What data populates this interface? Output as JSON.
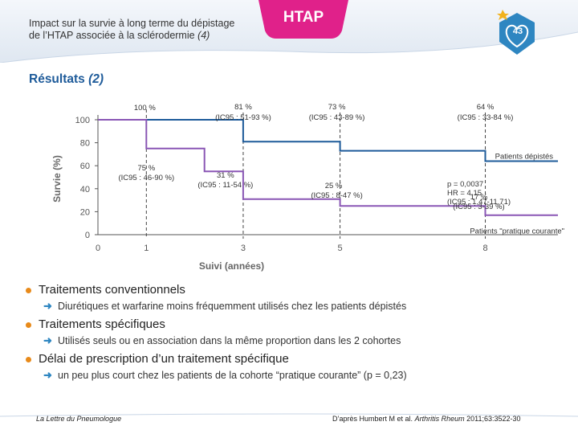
{
  "header": {
    "title_line1": "Impact sur la survie à long terme du dépistage",
    "title_line2": "de l’HTAP associée à la sclérodermie",
    "title_ref": "(4)",
    "badge": "HTAP",
    "slide_number": "43",
    "colors": {
      "badge": "#e0218a",
      "header_bg": "#e8eef5",
      "accent": "#2e86c1"
    }
  },
  "section": {
    "title": "Résultats",
    "title_ref": "(2)"
  },
  "chart_data": {
    "type": "line",
    "xlabel": "Suivi (années)",
    "ylabel": "Survie (%)",
    "xlim": [
      0,
      9.5
    ],
    "ylim": [
      0,
      100
    ],
    "xticks": [
      "0",
      "1",
      "3",
      "5",
      "8"
    ],
    "yticks": [
      "0",
      "20",
      "40",
      "60",
      "80",
      "100"
    ],
    "series": [
      {
        "name": "Patients dépistés",
        "color": "#1e5b9a",
        "points": [
          [
            0,
            100
          ],
          [
            1,
            100
          ],
          [
            1,
            100
          ],
          [
            3,
            100
          ],
          [
            3,
            81
          ],
          [
            5,
            81
          ],
          [
            5,
            73
          ],
          [
            8,
            73
          ],
          [
            8,
            64
          ],
          [
            9.5,
            64
          ]
        ]
      },
      {
        "name": "Patients \"pratique courante\"",
        "color": "#8a57b5",
        "points": [
          [
            0,
            100
          ],
          [
            1,
            100
          ],
          [
            1,
            75
          ],
          [
            2.2,
            75
          ],
          [
            2.2,
            55
          ],
          [
            3,
            55
          ],
          [
            3,
            31
          ],
          [
            5,
            31
          ],
          [
            5,
            25
          ],
          [
            8,
            25
          ],
          [
            8,
            17
          ],
          [
            9.5,
            17
          ]
        ]
      }
    ],
    "annotations": {
      "a100": "100 %",
      "a81_val": "81 %",
      "a81_ci": "(IC95 : 51-93 %)",
      "a73_val": "73 %",
      "a73_ci": "(IC95 : 43-89 %)",
      "a64_val": "64 %",
      "a64_ci": "(IC95 : 33-84 %)",
      "a75_val": "75 %",
      "a75_ci": "(IC95 : 46-90 %)",
      "a31_val": "31 %",
      "a31_ci": "(IC95 : 11-54 %)",
      "a25_val": "25 %",
      "a25_ci": "(IC95 : 8-47 %)",
      "a17_val": "17 %",
      "a17_ci": "(IC95 : 3-39 %)",
      "stats1": "p = 0,0037",
      "stats2": "HR = 4,15",
      "stats3": "(IC95 : 1,47-11,71)"
    }
  },
  "bullets": [
    {
      "title": "Traitements conventionnels",
      "sub": "Diurétiques et warfarine moins fréquemment utilisés chez les patients dépistés"
    },
    {
      "title": "Traitements spécifiques",
      "sub": "Utilisés seuls ou en association dans la même proportion dans les 2 cohortes"
    },
    {
      "title": "Délai de prescription d’un traitement spécifique",
      "sub": "un peu plus court chez les patients de la cohorte “pratique courante” (p = 0,23)"
    }
  ],
  "footer": {
    "left": "La Lettre du Pneumologue",
    "right_authors": "D’après Humbert M et al.",
    "right_journal": "Arthritis Rheum",
    "right_ref": "2011;63:3522-30"
  }
}
